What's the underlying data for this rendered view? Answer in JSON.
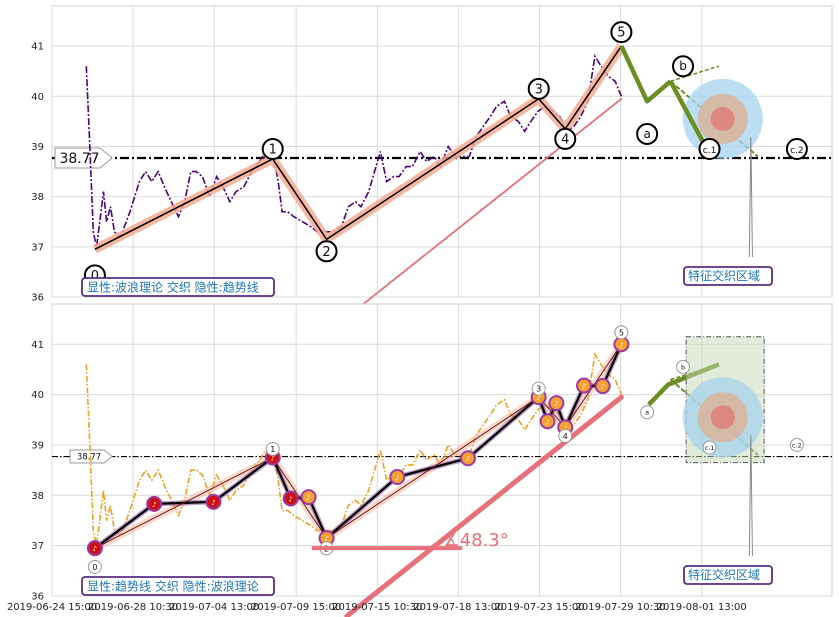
{
  "colors": {
    "price": "#4b0082",
    "price_bottom": "#f0a020",
    "wave": "#000000",
    "wave_halo": "#f4a98e",
    "trend": "#e8707a",
    "forecast": "#6b8e23",
    "zone_blue": "#a6d3ee",
    "zone_tan": "#d9b49a",
    "zone_red": "#e07a78",
    "box_border": "#5a2d82",
    "label_text": "#1f77b4",
    "marker_red": "#d01010",
    "marker_orange": "#f5a030",
    "marker_blue": "#1f77d4",
    "marker_ring": "#9b3aa6"
  },
  "chart_data": {
    "type": "line",
    "x_ticks": [
      "2019-06-24 15:00",
      "2019-06-28 10:30",
      "2019-07-04 13:00",
      "2019-07-09 15:00",
      "2019-07-15 10:30",
      "2019-07-18 13:00",
      "2019-07-23 15:00",
      "2019-07-29 10:30",
      "2019-08-01 13:00"
    ],
    "xlim": [
      0,
      100
    ],
    "x_tick_pos": [
      0,
      10.4,
      20.8,
      31.3,
      41.7,
      52.1,
      62.5,
      72.9,
      83.3
    ],
    "ylim": [
      36,
      41.8
    ],
    "y_ticks": [
      36,
      37,
      38,
      39,
      40,
      41
    ],
    "h_line_value": 38.77,
    "h_line_label": "38.77",
    "price": [
      [
        4.4,
        40.6
      ],
      [
        4.8,
        39.2
      ],
      [
        5.3,
        37.3
      ],
      [
        5.7,
        37.0
      ],
      [
        6.2,
        37.6
      ],
      [
        6.6,
        38.1
      ],
      [
        7.0,
        37.5
      ],
      [
        7.5,
        37.8
      ],
      [
        8.0,
        37.3
      ],
      [
        8.8,
        37.2
      ],
      [
        10.0,
        37.7
      ],
      [
        11.2,
        38.3
      ],
      [
        12.0,
        38.5
      ],
      [
        12.8,
        38.3
      ],
      [
        13.6,
        38.5
      ],
      [
        14.4,
        38.2
      ],
      [
        15.3,
        37.9
      ],
      [
        16.2,
        37.6
      ],
      [
        17.0,
        37.9
      ],
      [
        17.8,
        38.5
      ],
      [
        18.5,
        38.5
      ],
      [
        19.3,
        38.4
      ],
      [
        20.2,
        38.0
      ],
      [
        21.1,
        38.4
      ],
      [
        21.9,
        38.2
      ],
      [
        22.8,
        37.9
      ],
      [
        23.6,
        38.1
      ],
      [
        24.6,
        38.2
      ],
      [
        25.6,
        38.5
      ],
      [
        26.6,
        38.7
      ],
      [
        27.4,
        38.9
      ],
      [
        28.4,
        38.8
      ],
      [
        29.0,
        38.3
      ],
      [
        29.5,
        37.7
      ],
      [
        30.2,
        37.7
      ],
      [
        31.0,
        37.6
      ],
      [
        32.1,
        37.5
      ],
      [
        33.2,
        37.4
      ],
      [
        34.0,
        37.3
      ],
      [
        35.0,
        37.3
      ],
      [
        36.0,
        37.3
      ],
      [
        37.1,
        37.4
      ],
      [
        38.0,
        37.8
      ],
      [
        38.9,
        37.9
      ],
      [
        39.6,
        37.8
      ],
      [
        40.6,
        38.1
      ],
      [
        42.1,
        38.9
      ],
      [
        42.9,
        38.3
      ],
      [
        43.8,
        38.4
      ],
      [
        44.5,
        38.4
      ],
      [
        45.4,
        38.6
      ],
      [
        46.2,
        38.6
      ],
      [
        47.2,
        38.9
      ],
      [
        48.0,
        38.7
      ],
      [
        49.0,
        38.8
      ],
      [
        49.8,
        38.6
      ],
      [
        50.8,
        39.0
      ],
      [
        51.7,
        38.8
      ],
      [
        52.6,
        38.8
      ],
      [
        53.5,
        38.8
      ],
      [
        54.4,
        39.2
      ],
      [
        55.3,
        39.4
      ],
      [
        56.2,
        39.6
      ],
      [
        57.0,
        39.8
      ],
      [
        58.0,
        39.9
      ],
      [
        58.8,
        39.6
      ],
      [
        59.8,
        39.5
      ],
      [
        60.6,
        39.3
      ],
      [
        61.4,
        39.5
      ],
      [
        62.3,
        39.7
      ],
      [
        63.2,
        39.8
      ],
      [
        64.2,
        39.7
      ],
      [
        65.1,
        39.6
      ],
      [
        66.0,
        39.3
      ],
      [
        66.9,
        39.4
      ],
      [
        67.8,
        39.6
      ],
      [
        68.7,
        39.9
      ],
      [
        69.6,
        40.8
      ],
      [
        70.4,
        40.6
      ],
      [
        71.3,
        40.4
      ],
      [
        72.2,
        40.3
      ],
      [
        73.0,
        40.0
      ]
    ],
    "waves": {
      "labels": [
        "0",
        "1",
        "2",
        "3",
        "4",
        "5"
      ],
      "points": [
        [
          5.5,
          36.95
        ],
        [
          28.3,
          38.75
        ],
        [
          35.2,
          37.15
        ],
        [
          62.4,
          39.95
        ],
        [
          65.8,
          39.35
        ],
        [
          73.0,
          41.0
        ]
      ]
    },
    "forecast_labels": [
      "a",
      "b",
      "c.1",
      "c.2"
    ],
    "top_caption": "显性:波浪理论 交织 隐性:趋势线",
    "bottom_caption": "显性:趋势线 交织 隐性:波浪理论",
    "zone_label": "特征交织区域",
    "angle_label": "∡48.3°"
  }
}
